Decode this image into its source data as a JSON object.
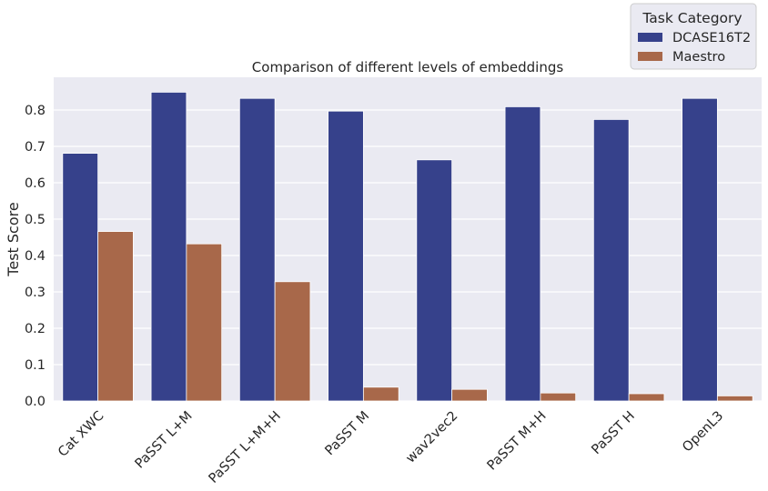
{
  "chart_data": {
    "type": "bar",
    "title": "Comparison of different levels of embeddings",
    "xlabel": "",
    "ylabel": "Test Score",
    "ylim": [
      0,
      0.89
    ],
    "yticks": [
      0.0,
      0.1,
      0.2,
      0.3,
      0.4,
      0.5,
      0.6,
      0.7,
      0.8
    ],
    "ytick_labels": [
      "0.0",
      "0.1",
      "0.2",
      "0.3",
      "0.4",
      "0.5",
      "0.6",
      "0.7",
      "0.8"
    ],
    "grid": true,
    "legend_position": "top-right",
    "legend_title": "Task Category",
    "categories": [
      "Cat XWC",
      "PaSST L+M",
      "PaSST L+M+H",
      "PaSST M",
      "wav2vec2",
      "PaSST M+H",
      "PaSST H",
      "OpenL3"
    ],
    "series": [
      {
        "name": "DCASE16T2",
        "color": "#36418b",
        "values": [
          0.681,
          0.849,
          0.832,
          0.797,
          0.663,
          0.809,
          0.774,
          0.832
        ]
      },
      {
        "name": "Maestro",
        "color": "#a8684a",
        "values": [
          0.466,
          0.432,
          0.328,
          0.038,
          0.032,
          0.022,
          0.02,
          0.014
        ]
      }
    ]
  }
}
